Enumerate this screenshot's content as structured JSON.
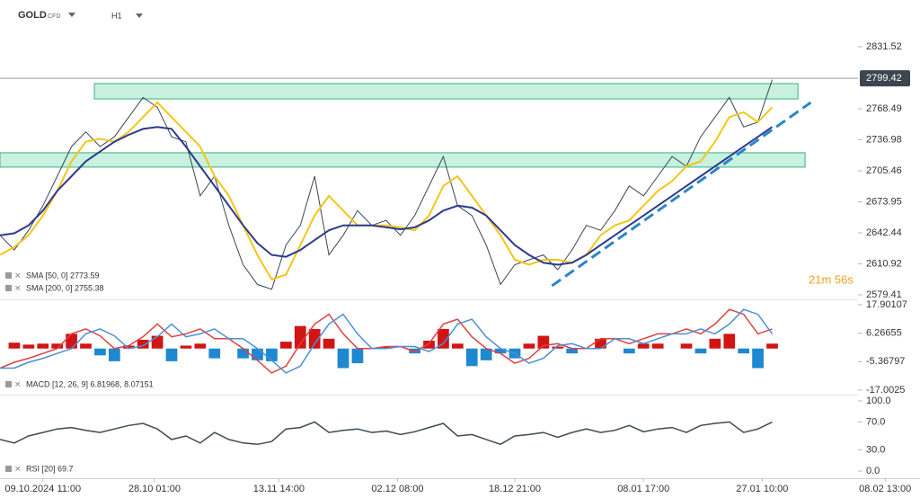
{
  "header": {
    "symbol": "GOLD",
    "kind": "CFD",
    "interval": "H1"
  },
  "countdown": "21m 56s",
  "xlim": [
    0,
    60
  ],
  "xticks": [
    {
      "value": 3,
      "label": "09.10.2024 11:00"
    },
    {
      "value": 10.8,
      "label": "28.10 01:00"
    },
    {
      "value": 19.5,
      "label": "13.11 14:00"
    },
    {
      "value": 27.8,
      "label": "02.12 08:00"
    },
    {
      "value": 36,
      "label": "18.12 21:00"
    },
    {
      "value": 45,
      "label": "08.01 17:00"
    },
    {
      "value": 53.3,
      "label": "27.01 10:00"
    },
    {
      "value": 61.9,
      "label": "08.02 13:00"
    }
  ],
  "chart_data": [
    {
      "type": "line",
      "ylim": [
        2575.75,
        2879.0
      ],
      "yticks": [
        2831.52,
        2768.49,
        2736.98,
        2705.46,
        2673.95,
        2642.44,
        2610.92,
        2579.41
      ],
      "last_price": 2799.42,
      "zones": [
        {
          "xlim": [
            6.6,
            55.8
          ],
          "ylim": [
            2778.5,
            2794.1
          ],
          "color": "#b5ecd6"
        },
        {
          "xlim": [
            0,
            56.3
          ],
          "ylim": [
            2709.2,
            2723.8
          ],
          "color": "#b5ecd6"
        }
      ],
      "trendline": {
        "x": [
          38.6,
          56.7
        ],
        "y": [
          2588.6,
          2774.9
        ],
        "color": "#2a86c8"
      },
      "series": [
        {
          "name": "GOLD",
          "color": "#3a4650",
          "values": [
            2640,
            2625,
            2645,
            2670,
            2700,
            2730,
            2745,
            2730,
            2740,
            2760,
            2780,
            2770,
            2740,
            2735,
            2680,
            2700,
            2650,
            2610,
            2590,
            2585,
            2630,
            2650,
            2700,
            2620,
            2640,
            2665,
            2650,
            2655,
            2640,
            2660,
            2690,
            2720,
            2670,
            2660,
            2630,
            2590,
            2610,
            2615,
            2620,
            2605,
            2625,
            2650,
            2645,
            2665,
            2690,
            2680,
            2700,
            2720,
            2710,
            2740,
            2760,
            2780,
            2750,
            2755,
            2798
          ]
        },
        {
          "name": "SMA [50, 0] 2773.59",
          "color": "#f5c518",
          "values": [
            2620,
            2628,
            2640,
            2660,
            2685,
            2715,
            2735,
            2738,
            2735,
            2745,
            2760,
            2775,
            2760,
            2745,
            2730,
            2700,
            2680,
            2650,
            2620,
            2595,
            2600,
            2630,
            2660,
            2680,
            2665,
            2650,
            2650,
            2650,
            2648,
            2645,
            2660,
            2690,
            2700,
            2680,
            2660,
            2640,
            2615,
            2610,
            2615,
            2615,
            2612,
            2620,
            2640,
            2650,
            2655,
            2670,
            2685,
            2695,
            2710,
            2715,
            2735,
            2760,
            2765,
            2755,
            2770
          ]
        },
        {
          "name": "SMA [200, 0] 2755.38",
          "color": "#2e3a8c",
          "values": [
            2640,
            2642,
            2650,
            2665,
            2685,
            2700,
            2715,
            2725,
            2735,
            2742,
            2748,
            2750,
            2748,
            2730,
            2710,
            2690,
            2670,
            2650,
            2632,
            2620,
            2618,
            2625,
            2635,
            2645,
            2650,
            2650,
            2650,
            2648,
            2646,
            2648,
            2655,
            2665,
            2670,
            2668,
            2660,
            2645,
            2630,
            2620,
            2612,
            2610,
            2612,
            2620,
            2630,
            2640,
            2650,
            2660,
            2670,
            2680,
            2690,
            2700,
            2710,
            2720,
            2730,
            2740,
            2750
          ]
        }
      ]
    },
    {
      "type": "macd",
      "legend": "MACD [12, 26, 9] 6.81968, 8.07151",
      "ylim": [
        -18.47,
        19.37
      ],
      "yticks": [
        17.90107,
        6.26655,
        -5.36797,
        -17.0025
      ],
      "histogram": {
        "up_color": "#d11414",
        "down_color": "#1e88d0",
        "values": [
          0,
          2.4,
          1.6,
          2,
          2,
          6,
          2,
          -2.8,
          -5.2,
          1.2,
          3.6,
          5.2,
          -5.2,
          1.2,
          2,
          -4,
          0,
          -4,
          -4.8,
          -5.2,
          2.8,
          9.2,
          8,
          4,
          -8,
          -6,
          0,
          0.8,
          0,
          -2,
          3.2,
          8,
          2,
          -7.2,
          -4.8,
          -2,
          -4,
          2,
          5.2,
          0.8,
          -2,
          0,
          4,
          0,
          -2,
          2,
          2,
          0,
          2,
          -2,
          4,
          6,
          -2,
          -8,
          2
        ]
      },
      "series": [
        {
          "color": "#e04040",
          "values": [
            -8,
            -5.6,
            -4,
            -2,
            0,
            6,
            8,
            5.2,
            0,
            1.2,
            4.8,
            10,
            4.8,
            6,
            8,
            4,
            4,
            0,
            -4.8,
            -10,
            -7.2,
            2,
            10,
            14,
            6,
            0,
            0,
            0.8,
            0.8,
            -1.2,
            2,
            10,
            12,
            4.8,
            0,
            -2,
            -6,
            -4,
            1.2,
            2,
            0,
            0,
            4,
            4,
            2,
            4,
            6,
            6,
            8,
            6,
            10,
            16,
            14,
            6,
            8
          ]
        },
        {
          "color": "#4a8fd6",
          "values": [
            -8,
            -8,
            -5.6,
            -4,
            -2,
            0,
            6,
            8,
            5.2,
            0,
            1.2,
            4.8,
            10,
            4.8,
            6,
            8,
            4,
            4,
            0,
            -4.8,
            -10,
            -7.2,
            2,
            10,
            14,
            6,
            0,
            0,
            0.8,
            0.8,
            -1.2,
            2,
            10,
            12,
            4.8,
            0,
            -2,
            -6,
            -4,
            1.2,
            2,
            0,
            0,
            4,
            4,
            2,
            4,
            6,
            6,
            8,
            6,
            10,
            16,
            14,
            6
          ]
        }
      ]
    },
    {
      "type": "rsi",
      "legend": "RSI [20] 69.7",
      "ylim": [
        -10.3,
        107.7
      ],
      "yticks": [
        {
          "value": 100,
          "label": "100.0"
        },
        {
          "value": 70,
          "label": "70.0"
        },
        {
          "value": 30,
          "label": "30.0"
        },
        {
          "value": 0,
          "label": "0.0"
        }
      ],
      "series": [
        {
          "color": "#3e4a54",
          "values": [
            45,
            40,
            50,
            55,
            60,
            62,
            58,
            55,
            60,
            65,
            68,
            60,
            45,
            50,
            40,
            55,
            45,
            40,
            38,
            42,
            60,
            62,
            70,
            55,
            58,
            60,
            55,
            57,
            52,
            56,
            62,
            68,
            50,
            52,
            45,
            38,
            50,
            52,
            55,
            48,
            55,
            60,
            55,
            58,
            65,
            56,
            60,
            62,
            55,
            65,
            68,
            70,
            55,
            60,
            69.7
          ]
        }
      ]
    }
  ]
}
